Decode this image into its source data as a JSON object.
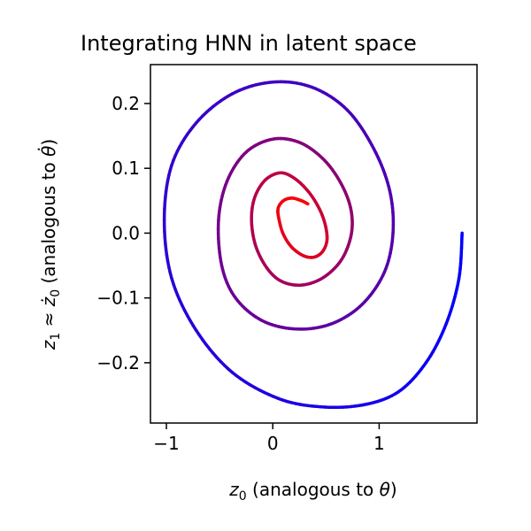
{
  "chart_data": {
    "type": "line",
    "title": "Integrating HNN in latent space",
    "xlabel_prefix": "z",
    "xlabel_sub": "0",
    "xlabel_rest": " (analogous to ",
    "xlabel_greek": "θ",
    "xlabel_close": ")",
    "ylabel_prefix": "z",
    "ylabel_sub": "1",
    "ylabel_approx": " ≈ ",
    "ylabel_z": "ż",
    "ylabel_sub2": "0",
    "ylabel_rest": " (analogous to ",
    "ylabel_greek": "θ̇",
    "ylabel_close": ")",
    "xlim": [
      -1.15,
      1.92
    ],
    "ylim": [
      -0.293,
      0.26
    ],
    "xticks": [
      -1,
      0,
      1
    ],
    "xtick_labels": [
      "−1",
      "0",
      "1"
    ],
    "yticks": [
      0.2,
      0.1,
      0.0,
      -0.1,
      -0.2
    ],
    "ytick_labels": [
      "0.2",
      "0.1",
      "0.0",
      "−0.1",
      "−0.2"
    ],
    "grid": false,
    "color_start": "#0000ff",
    "color_end": "#ff0000",
    "series": [
      {
        "x": [
          1.78,
          1.75,
          1.63,
          1.44,
          1.18,
          0.85,
          0.45,
          0.05,
          -0.38,
          -0.72,
          -0.95,
          -1.02,
          -0.95,
          -0.72,
          -0.38,
          0.0,
          0.37,
          0.7,
          0.95,
          1.1,
          1.13,
          1.05,
          0.84,
          0.55,
          0.22,
          -0.1,
          -0.35,
          -0.48,
          -0.51,
          -0.43,
          -0.25,
          0.0,
          0.25,
          0.47,
          0.63,
          0.73,
          0.74,
          0.65,
          0.48,
          0.28,
          0.09,
          -0.05,
          -0.16,
          -0.2,
          -0.17,
          -0.07,
          0.07,
          0.2,
          0.33,
          0.43,
          0.49,
          0.51,
          0.47,
          0.39,
          0.29,
          0.18,
          0.1,
          0.06,
          0.05,
          0.1,
          0.18,
          0.27,
          0.33
        ],
        "y": [
          0.0,
          -0.07,
          -0.14,
          -0.2,
          -0.245,
          -0.265,
          -0.268,
          -0.255,
          -0.215,
          -0.15,
          -0.07,
          0.02,
          0.105,
          0.17,
          0.215,
          0.233,
          0.225,
          0.19,
          0.13,
          0.065,
          0.0,
          -0.06,
          -0.11,
          -0.14,
          -0.148,
          -0.135,
          -0.1,
          -0.05,
          0.02,
          0.08,
          0.125,
          0.145,
          0.14,
          0.115,
          0.08,
          0.04,
          0.0,
          -0.04,
          -0.068,
          -0.08,
          -0.075,
          -0.055,
          -0.02,
          0.02,
          0.055,
          0.082,
          0.093,
          0.085,
          0.065,
          0.04,
          0.015,
          -0.01,
          -0.028,
          -0.037,
          -0.035,
          -0.022,
          -0.002,
          0.02,
          0.038,
          0.05,
          0.054,
          0.05,
          0.045
        ]
      }
    ]
  }
}
